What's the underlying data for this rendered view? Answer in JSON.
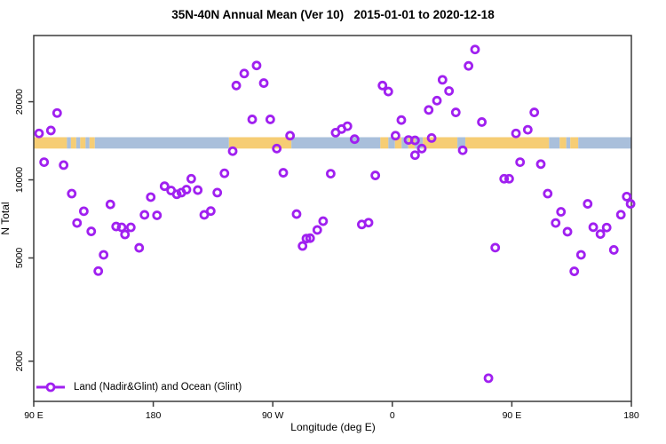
{
  "title": "35N-40N Annual Mean (Ver 10)   2015-01-01 to 2020-12-18",
  "xlabel": "Longitude (deg E)",
  "ylabel": "N Total",
  "legend": {
    "label": "Land (Nadir&Glint) and Ocean (Glint)"
  },
  "colors": {
    "marker": "#A020F0",
    "land": "#F6CD74",
    "ocean": "#A9BFDB",
    "axis": "#3C3C3C",
    "text": "#000000",
    "background": "#FFFFFF"
  },
  "chart_data": {
    "type": "scatter",
    "title": "35N-40N Annual Mean (Ver 10)   2015-01-01 to 2020-12-18",
    "xlabel": "Longitude (deg E)",
    "ylabel": "N Total",
    "legend_entries": [
      "Land (Nadir&Glint) and Ocean (Glint)"
    ],
    "legend_position": "bottom-left-inside",
    "grid": false,
    "x_axis": {
      "range": [
        90,
        540
      ],
      "ticks": [
        {
          "value": 90,
          "label": "90 E"
        },
        {
          "value": 180,
          "label": "180"
        },
        {
          "value": 270,
          "label": "90 W"
        },
        {
          "value": 360,
          "label": "0"
        },
        {
          "value": 450,
          "label": "90 E"
        },
        {
          "value": 540,
          "label": "180"
        }
      ]
    },
    "y_axis": {
      "scale": "log",
      "range": [
        1400,
        36000
      ],
      "ticks": [
        {
          "value": 2000,
          "label": "2000"
        },
        {
          "value": 5000,
          "label": "5000"
        },
        {
          "value": 10000,
          "label": "10000"
        },
        {
          "value": 20000,
          "label": "20000"
        }
      ]
    },
    "map_band": {
      "description": "land/ocean strip along 35N-40N latitude",
      "n_range": [
        13200,
        14600
      ],
      "segments": [
        {
          "from": 90,
          "to": 115,
          "type": "land"
        },
        {
          "from": 115,
          "to": 118,
          "type": "ocean"
        },
        {
          "from": 118,
          "to": 122,
          "type": "land"
        },
        {
          "from": 122,
          "to": 125,
          "type": "ocean"
        },
        {
          "from": 125,
          "to": 129,
          "type": "land"
        },
        {
          "from": 129,
          "to": 132,
          "type": "ocean"
        },
        {
          "from": 132,
          "to": 136,
          "type": "land"
        },
        {
          "from": 136,
          "to": 237,
          "type": "ocean"
        },
        {
          "from": 237,
          "to": 284,
          "type": "land"
        },
        {
          "from": 284,
          "to": 351,
          "type": "ocean"
        },
        {
          "from": 351,
          "to": 357,
          "type": "land"
        },
        {
          "from": 357,
          "to": 362,
          "type": "ocean"
        },
        {
          "from": 362,
          "to": 367,
          "type": "land"
        },
        {
          "from": 367,
          "to": 372,
          "type": "ocean"
        },
        {
          "from": 372,
          "to": 377,
          "type": "land"
        },
        {
          "from": 377,
          "to": 383,
          "type": "ocean"
        },
        {
          "from": 383,
          "to": 409,
          "type": "land"
        },
        {
          "from": 409,
          "to": 415,
          "type": "ocean"
        },
        {
          "from": 415,
          "to": 478,
          "type": "land"
        },
        {
          "from": 478,
          "to": 486,
          "type": "ocean"
        },
        {
          "from": 486,
          "to": 491,
          "type": "land"
        },
        {
          "from": 491,
          "to": 494,
          "type": "ocean"
        },
        {
          "from": 494,
          "to": 500,
          "type": "land"
        },
        {
          "from": 500,
          "to": 540,
          "type": "ocean"
        }
      ]
    },
    "points": [
      [
        107.6,
        18100
      ],
      [
        94,
        15100
      ],
      [
        102.9,
        15500
      ],
      [
        97.8,
        11700
      ],
      [
        112.5,
        11400
      ],
      [
        118.6,
        8850
      ],
      [
        127.7,
        7570
      ],
      [
        147.7,
        8040
      ],
      [
        122.6,
        6820
      ],
      [
        133.3,
        6330
      ],
      [
        152,
        6610
      ],
      [
        156.2,
        6560
      ],
      [
        158.7,
        6160
      ],
      [
        163.1,
        6560
      ],
      [
        142.6,
        5140
      ],
      [
        138.6,
        4450
      ],
      [
        178.1,
        8580
      ],
      [
        173.4,
        7330
      ],
      [
        182.8,
        7300
      ],
      [
        169.4,
        5470
      ],
      [
        188.5,
        9450
      ],
      [
        193.4,
        9100
      ],
      [
        197.7,
        8800
      ],
      [
        201.2,
        8930
      ],
      [
        205,
        9170
      ],
      [
        208.6,
        10100
      ],
      [
        213.5,
        9130
      ],
      [
        218.4,
        7330
      ],
      [
        223.3,
        7580
      ],
      [
        228.2,
        8930
      ],
      [
        233.6,
        10600
      ],
      [
        239.8,
        12900
      ],
      [
        242.5,
        23100
      ],
      [
        248.5,
        25700
      ],
      [
        257.8,
        27600
      ],
      [
        263.2,
        23600
      ],
      [
        254.5,
        17100
      ],
      [
        268.1,
        17100
      ],
      [
        283,
        14800
      ],
      [
        273,
        13200
      ],
      [
        277.9,
        10650
      ],
      [
        313.6,
        10560
      ],
      [
        287.9,
        7380
      ],
      [
        307.9,
        6930
      ],
      [
        303.5,
        6410
      ],
      [
        298.1,
        5960
      ],
      [
        295.3,
        5940
      ],
      [
        292.4,
        5560
      ],
      [
        317.3,
        15200
      ],
      [
        321.8,
        15700
      ],
      [
        326.2,
        16100
      ],
      [
        331.6,
        14350
      ],
      [
        337,
        6730
      ],
      [
        342.1,
        6840
      ],
      [
        347.2,
        10400
      ],
      [
        352.6,
        23100
      ],
      [
        357,
        21900
      ],
      [
        362.4,
        14800
      ],
      [
        366.8,
        17000
      ],
      [
        372.2,
        14250
      ],
      [
        377.1,
        14200
      ],
      [
        382.2,
        13200
      ],
      [
        377.1,
        12450
      ],
      [
        387.4,
        18600
      ],
      [
        389.6,
        14500
      ],
      [
        393.6,
        20200
      ],
      [
        397.8,
        24300
      ],
      [
        402.7,
        22000
      ],
      [
        407.8,
        18200
      ],
      [
        413,
        13000
      ],
      [
        417.4,
        27500
      ],
      [
        422.3,
        31800
      ],
      [
        427.4,
        16700
      ],
      [
        432.4,
        1720
      ],
      [
        437.5,
        5480
      ],
      [
        444.2,
        10100
      ],
      [
        448,
        10100
      ],
      [
        453.1,
        15100
      ],
      [
        456.2,
        11700
      ],
      [
        462,
        15600
      ],
      [
        466.9,
        18200
      ],
      [
        471.8,
        11500
      ],
      [
        477,
        8850
      ],
      [
        483,
        6820
      ],
      [
        487,
        7530
      ],
      [
        491.9,
        6310
      ],
      [
        497,
        4440
      ],
      [
        502.1,
        5140
      ],
      [
        507.1,
        8080
      ],
      [
        511.3,
        6570
      ],
      [
        516.7,
        6180
      ],
      [
        521.4,
        6550
      ],
      [
        526.8,
        5370
      ],
      [
        532.1,
        7340
      ],
      [
        536.5,
        8620
      ],
      [
        539.4,
        8080
      ]
    ]
  }
}
